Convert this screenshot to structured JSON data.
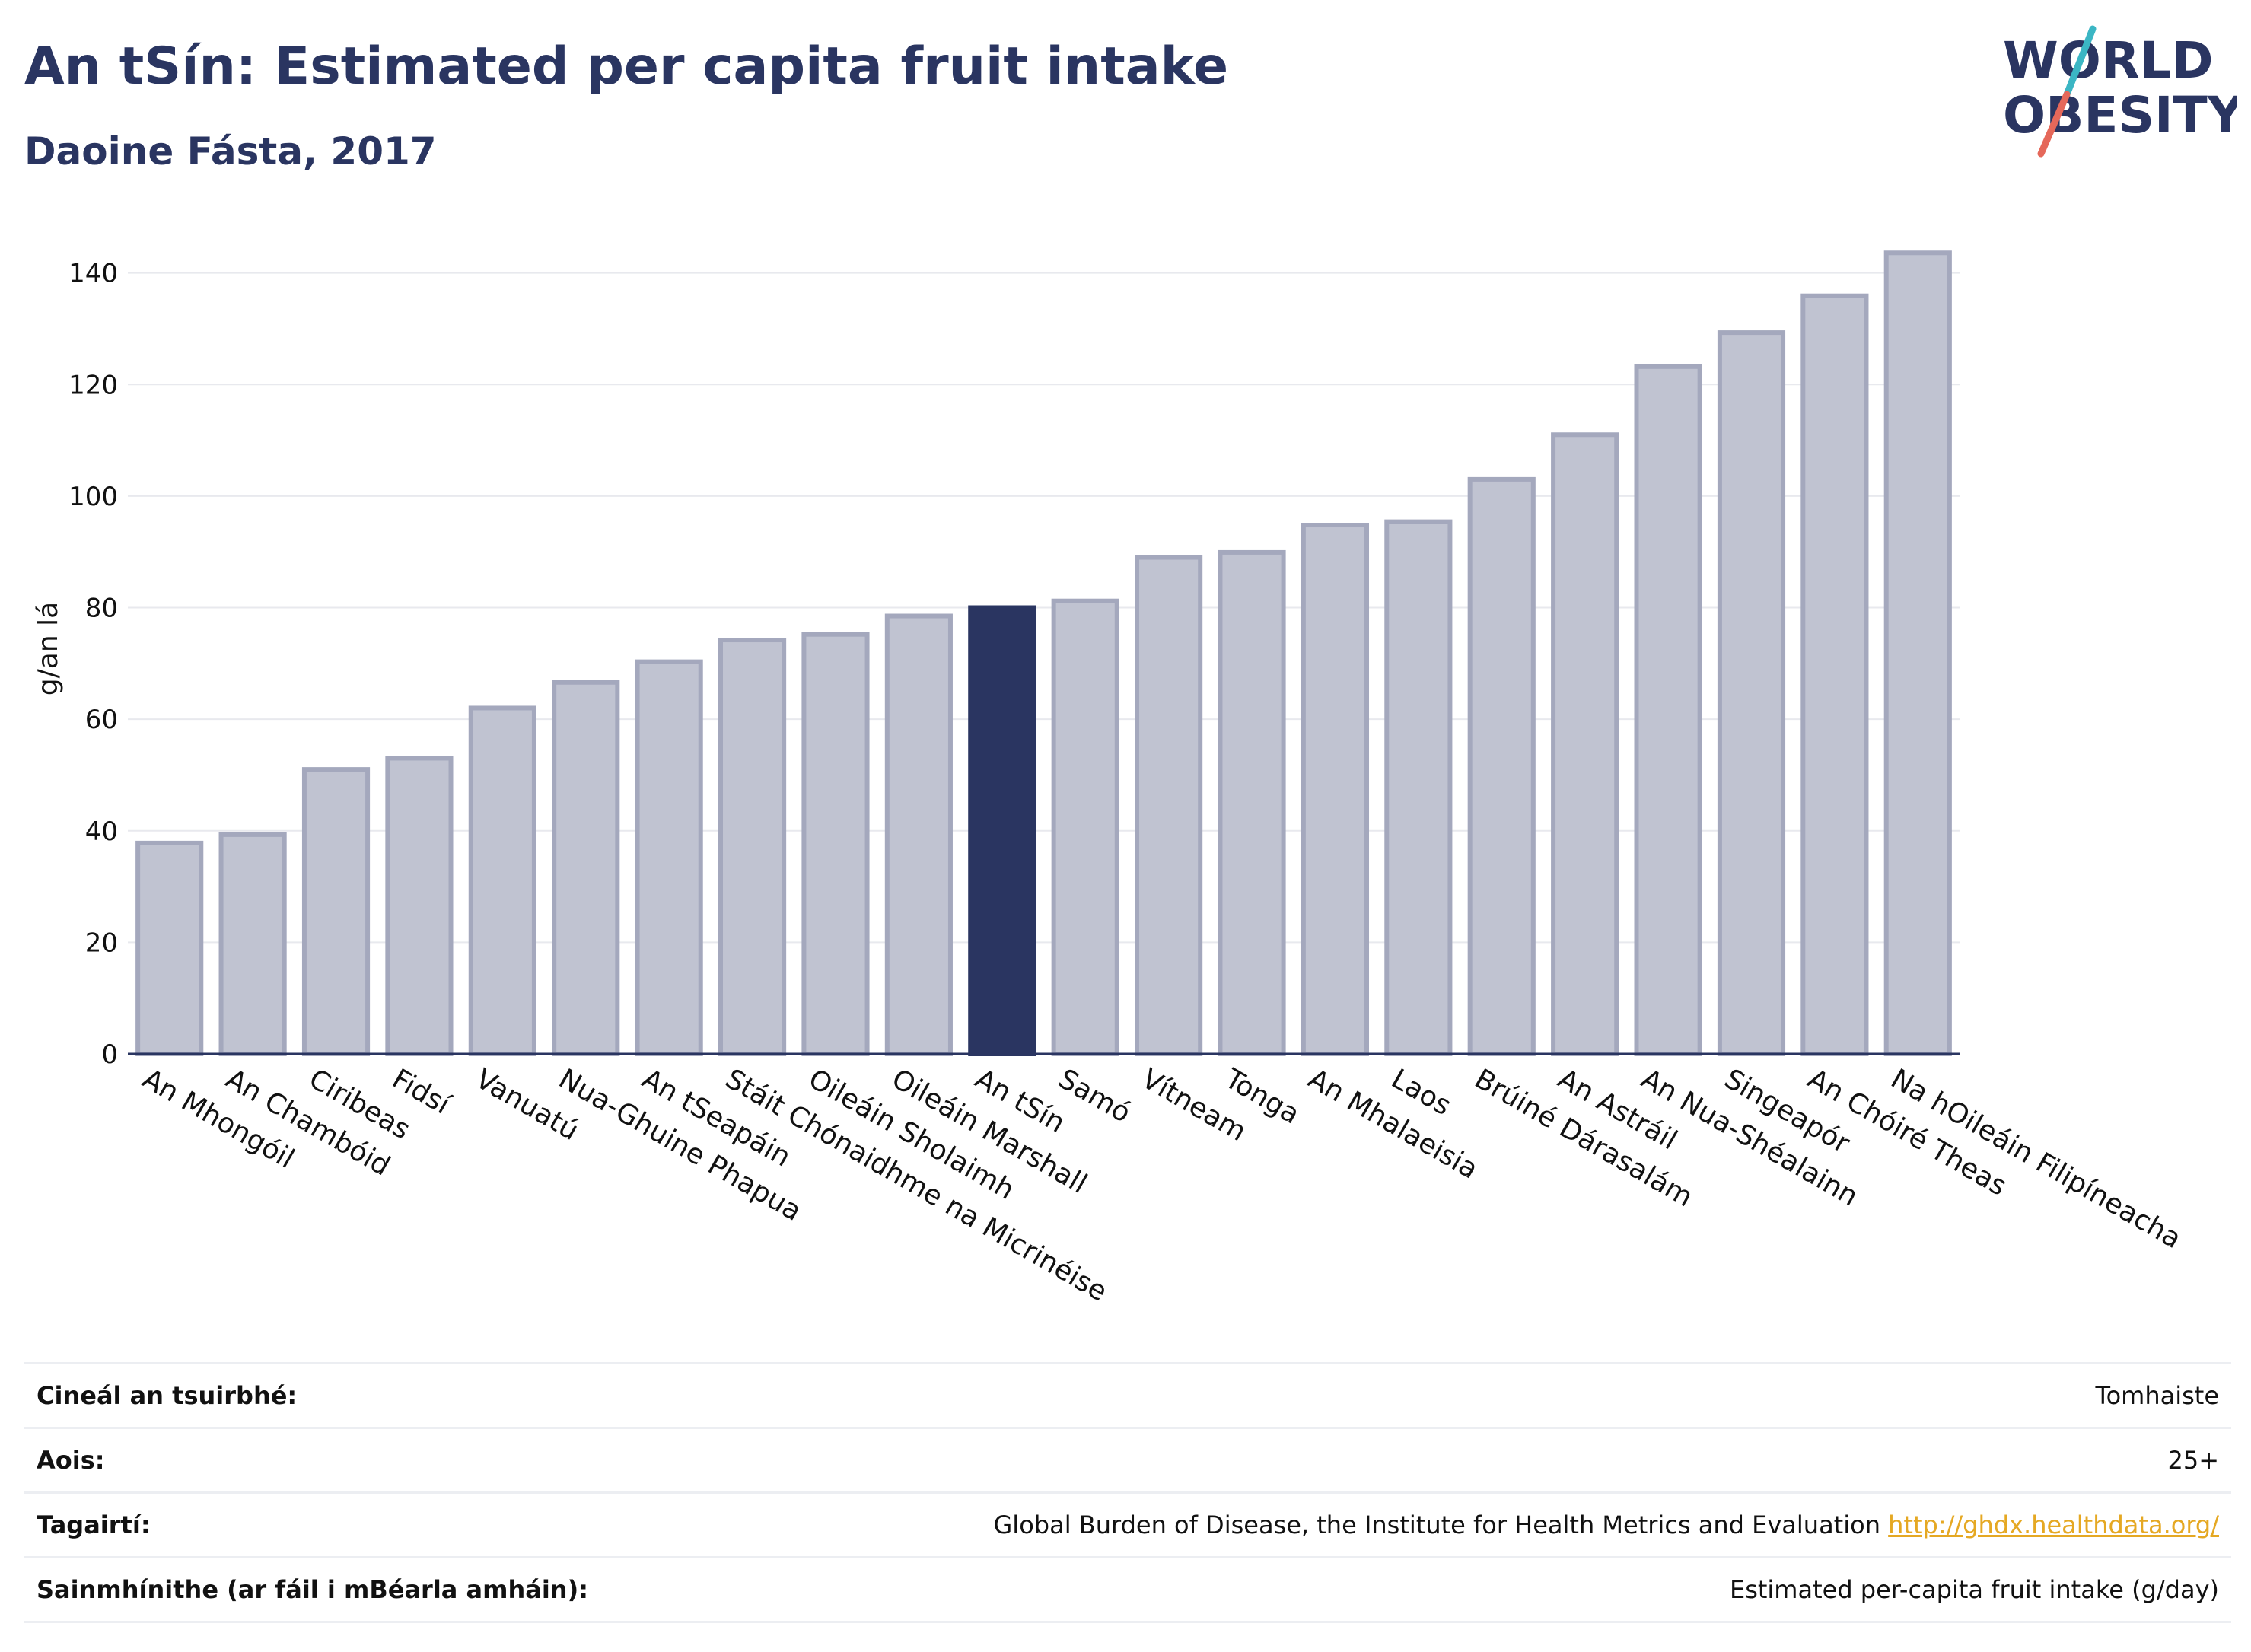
{
  "header": {
    "title": "An tSín: Estimated per capita fruit intake",
    "subtitle": "Daoine Fásta, 2017"
  },
  "logo": {
    "line1": "WORLD",
    "line2": "OBESITY",
    "colors": {
      "text": "#2a3561",
      "slash_top": "#3bb6c4",
      "slash_bottom": "#e5685a"
    }
  },
  "chart_data": {
    "type": "bar",
    "ylabel": "g/an lá",
    "ylim": [
      0,
      148
    ],
    "yticks": [
      0,
      20,
      40,
      60,
      80,
      100,
      120,
      140
    ],
    "grid": true,
    "highlight": "An tSín",
    "colors": {
      "bar": "#c0c3d1",
      "bar_border": "#a4a8bd",
      "highlight": "#2a3561",
      "grid": "#e8e9ee"
    },
    "categories": [
      "An Mhongóil",
      "An Chambóid",
      "Ciribeas",
      "Fidsí",
      "Vanuatú",
      "Nua-Ghuine Phapua",
      "An tSeapáin",
      "Stáit Chónaidhme na Micrinéise",
      "Oileáin Sholaimh",
      "Oileáin Marshall",
      "An tSín",
      "Samó",
      "Vítneam",
      "Tonga",
      "An Mhalaeisia",
      "Laos",
      "Brúiné Dárasalám",
      "An Astráil",
      "An Nua-Shéalainn",
      "Singeapór",
      "An Chóiré Theas",
      "Na hOileáin Filipíneacha"
    ],
    "values": [
      37.8,
      39.3,
      51,
      53,
      62,
      66.6,
      70.3,
      74.2,
      75.2,
      78.5,
      80,
      81.2,
      89,
      89.9,
      94.8,
      95.4,
      103,
      111,
      123.2,
      129.3,
      135.9,
      143.6
    ]
  },
  "info": {
    "rows": [
      {
        "label": "Cineál an tsuirbhé:",
        "value": "Tomhaiste"
      },
      {
        "label": "Aois:",
        "value": "25+"
      },
      {
        "label": "Tagairtí:",
        "value": "Global Burden of Disease, the Institute for Health Metrics and Evaluation",
        "link": "http://ghdx.healthdata.org/"
      },
      {
        "label": "Sainmhínithe (ar fáil i mBéarla amháin):",
        "value": "Estimated per-capita fruit intake (g/day)"
      }
    ]
  }
}
